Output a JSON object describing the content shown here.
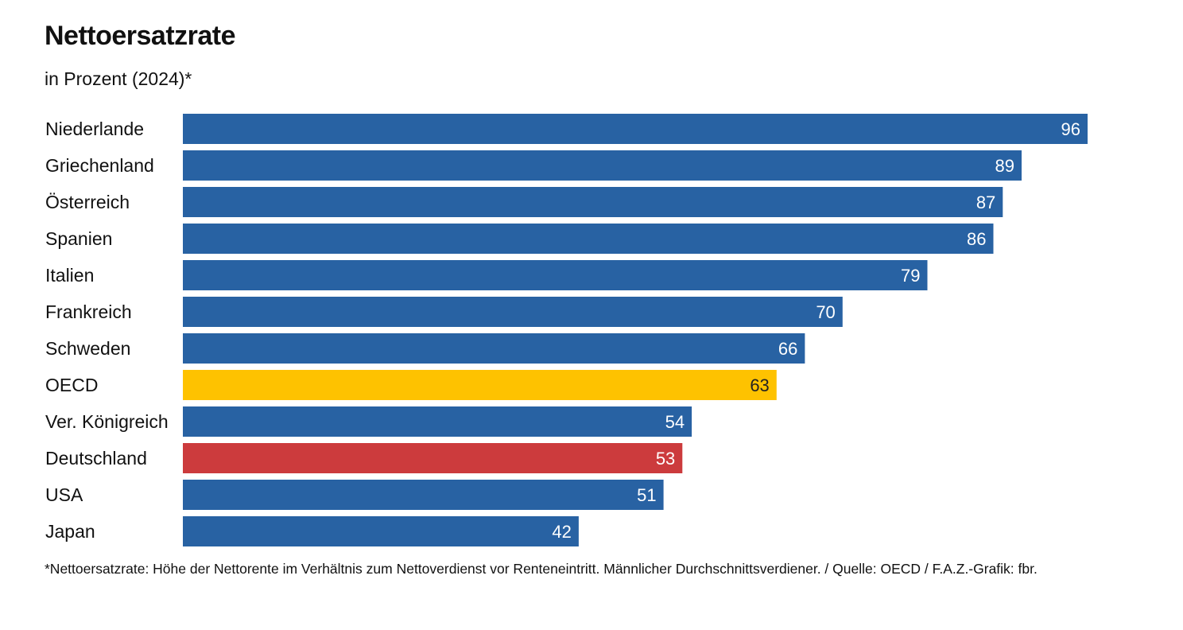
{
  "header": {
    "title": "Nettoersatzrate",
    "subtitle": "in Prozent (2024)*"
  },
  "chart_data": {
    "type": "bar",
    "orientation": "horizontal",
    "title": "Nettoersatzrate",
    "subtitle": "in Prozent (2024)*",
    "xlabel": "",
    "ylabel": "",
    "xlim": [
      0,
      100
    ],
    "grid": false,
    "categories": [
      "Niederlande",
      "Griechenland",
      "Österreich",
      "Spanien",
      "Italien",
      "Frankreich",
      "Schweden",
      "OECD",
      "Ver. Königreich",
      "Deutschland",
      "USA",
      "Japan"
    ],
    "values": [
      96,
      89,
      87,
      86,
      79,
      70,
      66,
      63,
      54,
      53,
      51,
      42
    ],
    "highlight": {
      "OECD": "#fec200",
      "Deutschland": "#cc3b3d"
    },
    "default_color": "#2862a3"
  },
  "colors": {
    "bar_default": "#2862a3",
    "bar_oecd": "#fec200",
    "bar_germany": "#cc3b3d",
    "label_on_dark": "#ffffff",
    "label_on_light": "#222222"
  },
  "footer": {
    "footnote": "*Nettoersatzrate: Höhe der Nettorente im Verhältnis zum Nettoverdienst vor Renteneintritt. Männlicher Durchschnittsverdiener. / Quelle: OECD / F.A.Z.-Grafik: fbr."
  }
}
